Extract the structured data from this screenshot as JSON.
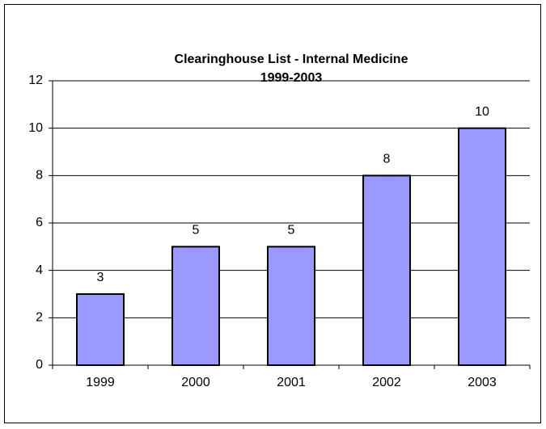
{
  "chart_data": {
    "type": "bar",
    "title": "Clearinghouse List - Internal Medicine",
    "subtitle": "1999-2003",
    "categories": [
      "1999",
      "2000",
      "2001",
      "2002",
      "2003"
    ],
    "values": [
      3,
      5,
      5,
      8,
      10
    ],
    "color": "#9999ff",
    "ylim": [
      0,
      12
    ],
    "yticks": [
      0,
      2,
      4,
      6,
      8,
      10,
      12
    ],
    "grid": true,
    "data_labels": true
  }
}
